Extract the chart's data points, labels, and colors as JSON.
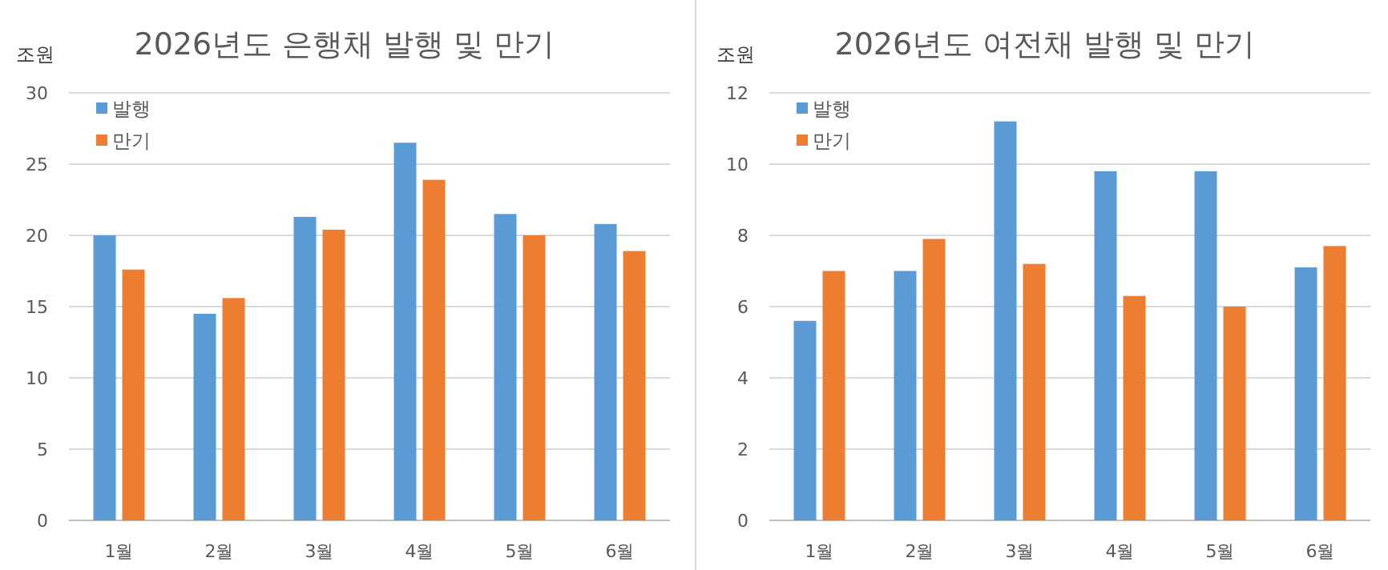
{
  "chart_data": [
    {
      "type": "bar",
      "title": "2026년도 은행채 발행 및 만기",
      "ylabel": "조원",
      "categories": [
        "1월",
        "2월",
        "3월",
        "4월",
        "5월",
        "6월"
      ],
      "series": [
        {
          "name": "발행",
          "color": "#5b9bd5",
          "values": [
            20.0,
            14.5,
            21.3,
            26.5,
            21.5,
            20.8
          ]
        },
        {
          "name": "만기",
          "color": "#ed7d31",
          "values": [
            17.6,
            15.6,
            20.4,
            23.9,
            20.0,
            18.9
          ]
        }
      ],
      "ylim": [
        0,
        30
      ],
      "yticks": [
        0,
        5,
        10,
        15,
        20,
        25,
        30
      ],
      "grid": "y",
      "legend": "top left"
    },
    {
      "type": "bar",
      "title": "2026년도 여전채 발행 및 만기",
      "ylabel": "조원",
      "categories": [
        "1월",
        "2월",
        "3월",
        "4월",
        "5월",
        "6월"
      ],
      "series": [
        {
          "name": "발행",
          "color": "#5b9bd5",
          "values": [
            5.6,
            7.0,
            11.2,
            9.8,
            9.8,
            7.1
          ]
        },
        {
          "name": "만기",
          "color": "#ed7d31",
          "values": [
            7.0,
            7.9,
            7.2,
            6.3,
            6.0,
            7.7
          ]
        }
      ],
      "ylim": [
        0,
        12
      ],
      "yticks": [
        0,
        2,
        4,
        6,
        8,
        10,
        12
      ],
      "grid": "y",
      "legend": "top left"
    }
  ]
}
